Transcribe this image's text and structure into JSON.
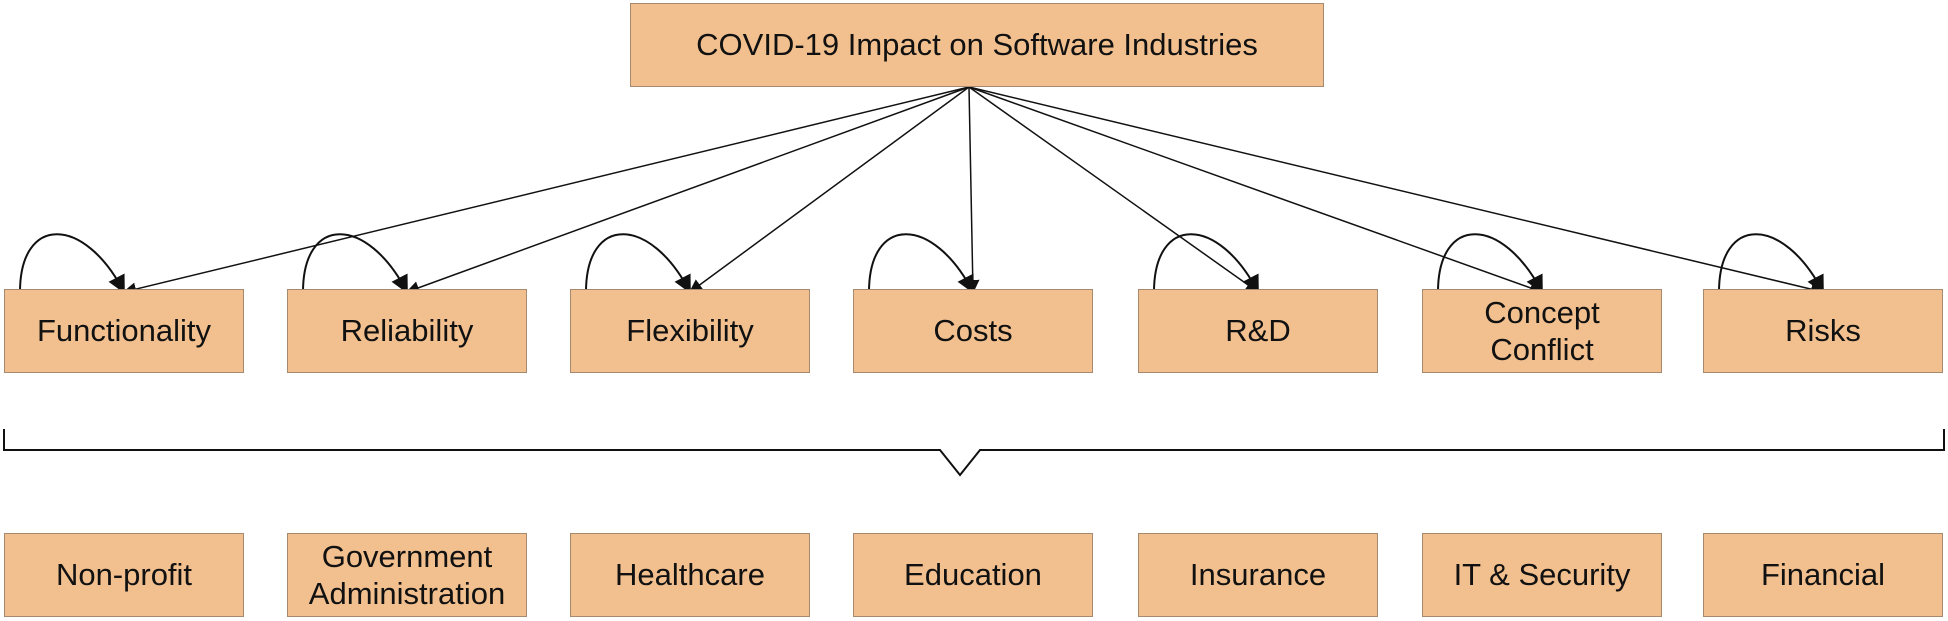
{
  "title": "COVID-19 Impact on Software Industries",
  "factors": [
    "Functionality",
    "Reliability",
    "Flexibility",
    "Costs",
    "R&D",
    "Concept Conflict",
    "Risks"
  ],
  "industries": [
    "Non-profit",
    "Government Administration",
    "Healthcare",
    "Education",
    "Insurance",
    "IT & Security",
    "Financial"
  ]
}
